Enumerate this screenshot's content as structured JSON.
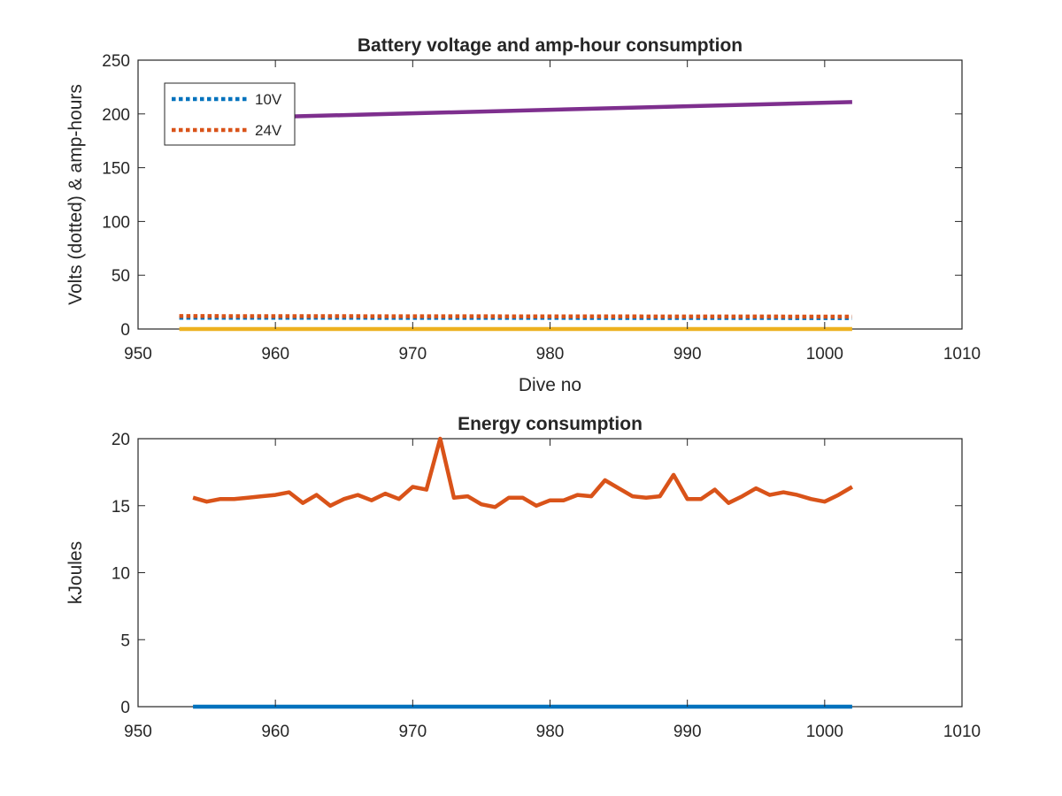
{
  "chart_data": [
    {
      "type": "line",
      "title": "Battery voltage and amp-hour consumption",
      "xlabel": "Dive no",
      "ylabel": "Volts (dotted) & amp-hours",
      "xlim": [
        950,
        1010
      ],
      "ylim": [
        0,
        250
      ],
      "xticks": [
        950,
        960,
        970,
        980,
        990,
        1000,
        1010
      ],
      "yticks": [
        0,
        50,
        100,
        150,
        200,
        250
      ],
      "grid": false,
      "legend_position": "top-left",
      "series": [
        {
          "name": "10V",
          "color": "#0072BD",
          "style": "dotted",
          "x": [
            953,
            1002
          ],
          "y": [
            10.5,
            10.2
          ]
        },
        {
          "name": "24V",
          "color": "#D95319",
          "style": "dotted",
          "x": [
            953,
            1002
          ],
          "y": [
            12.0,
            11.5
          ]
        },
        {
          "color": "#7E2F8E",
          "style": "solid",
          "x": [
            953,
            1002
          ],
          "y": [
            195,
            211
          ]
        },
        {
          "color": "#EDB120",
          "style": "solid",
          "x": [
            953,
            1002
          ],
          "y": [
            0,
            0
          ]
        }
      ]
    },
    {
      "type": "line",
      "title": "Energy consumption",
      "xlabel": "",
      "ylabel": "kJoules",
      "xlim": [
        950,
        1010
      ],
      "ylim": [
        0,
        20
      ],
      "xticks": [
        950,
        960,
        970,
        980,
        990,
        1000,
        1010
      ],
      "yticks": [
        0,
        5,
        10,
        15,
        20
      ],
      "grid": false,
      "series": [
        {
          "color": "#D95319",
          "style": "solid",
          "x": [
            954,
            955,
            956,
            957,
            958,
            959,
            960,
            961,
            962,
            963,
            964,
            965,
            966,
            967,
            968,
            969,
            970,
            971,
            972,
            973,
            974,
            975,
            976,
            977,
            978,
            979,
            980,
            981,
            982,
            983,
            984,
            985,
            986,
            987,
            988,
            989,
            990,
            991,
            992,
            993,
            994,
            995,
            996,
            997,
            998,
            999,
            1000,
            1001,
            1002
          ],
          "y": [
            15.6,
            15.3,
            15.5,
            15.5,
            15.6,
            15.7,
            15.8,
            16.0,
            15.2,
            15.8,
            15.0,
            15.5,
            15.8,
            15.4,
            15.9,
            15.5,
            16.4,
            16.2,
            20.0,
            15.6,
            15.7,
            15.1,
            14.9,
            15.6,
            15.6,
            15.0,
            15.4,
            15.4,
            15.8,
            15.7,
            16.9,
            16.3,
            15.7,
            15.6,
            15.7,
            17.3,
            15.5,
            15.5,
            16.2,
            15.2,
            15.7,
            16.3,
            15.8,
            16.0,
            15.8,
            15.5,
            15.3,
            15.8,
            16.4
          ]
        },
        {
          "color": "#0072BD",
          "style": "solid",
          "x": [
            954,
            1002
          ],
          "y": [
            0,
            0
          ]
        }
      ]
    }
  ]
}
